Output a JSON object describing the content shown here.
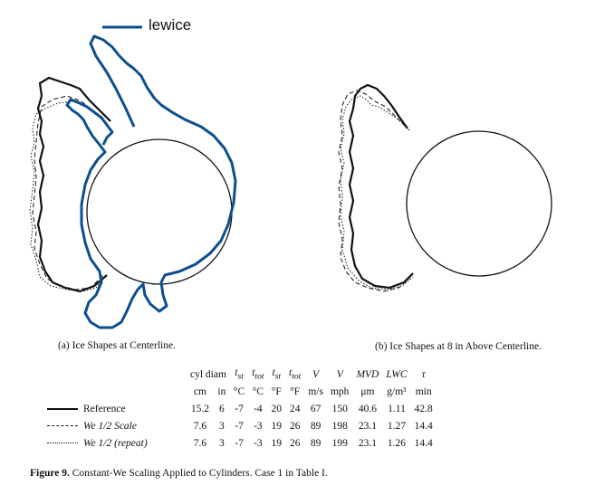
{
  "overlay_label": "lewice",
  "colors": {
    "lewice": "#0d4e8f",
    "ink": "#111111"
  },
  "panel_a": {
    "caption": "(a)  Ice Shapes at Centerline."
  },
  "panel_b": {
    "caption": "(b)  Ice Shapes at 8 in Above Centerline."
  },
  "table": {
    "headers": [
      "cyl diam",
      "",
      "t_st",
      "t_tot",
      "t_st",
      "t_tot",
      "V",
      "V",
      "MVD",
      "LWC",
      "τ"
    ],
    "units": [
      "cm",
      "in",
      "°C",
      "°C",
      "°F",
      "°F",
      "m/s",
      "mph",
      "μm",
      "g/m³",
      "min"
    ],
    "rows": [
      {
        "style": "solid",
        "label": "Reference",
        "values": [
          "15.2",
          "6",
          "-7",
          "-4",
          "20",
          "24",
          "67",
          "150",
          "40.6",
          "1.11",
          "42.8"
        ]
      },
      {
        "style": "dashed",
        "label": "We 1/2 Scale",
        "values": [
          "7.6",
          "3",
          "-7",
          "-3",
          "19",
          "26",
          "89",
          "198",
          "23.1",
          "1.27",
          "14.4"
        ]
      },
      {
        "style": "dotted",
        "label": "We 1/2 (repeat)",
        "values": [
          "7.6",
          "3",
          "-7",
          "-3",
          "19",
          "26",
          "89",
          "199",
          "23.1",
          "1.26",
          "14.4"
        ]
      }
    ]
  },
  "figure_caption": {
    "label": "Figure 9.",
    "text": "  Constant-We Scaling Applied to Cylinders.  Case 1 in Table I."
  }
}
